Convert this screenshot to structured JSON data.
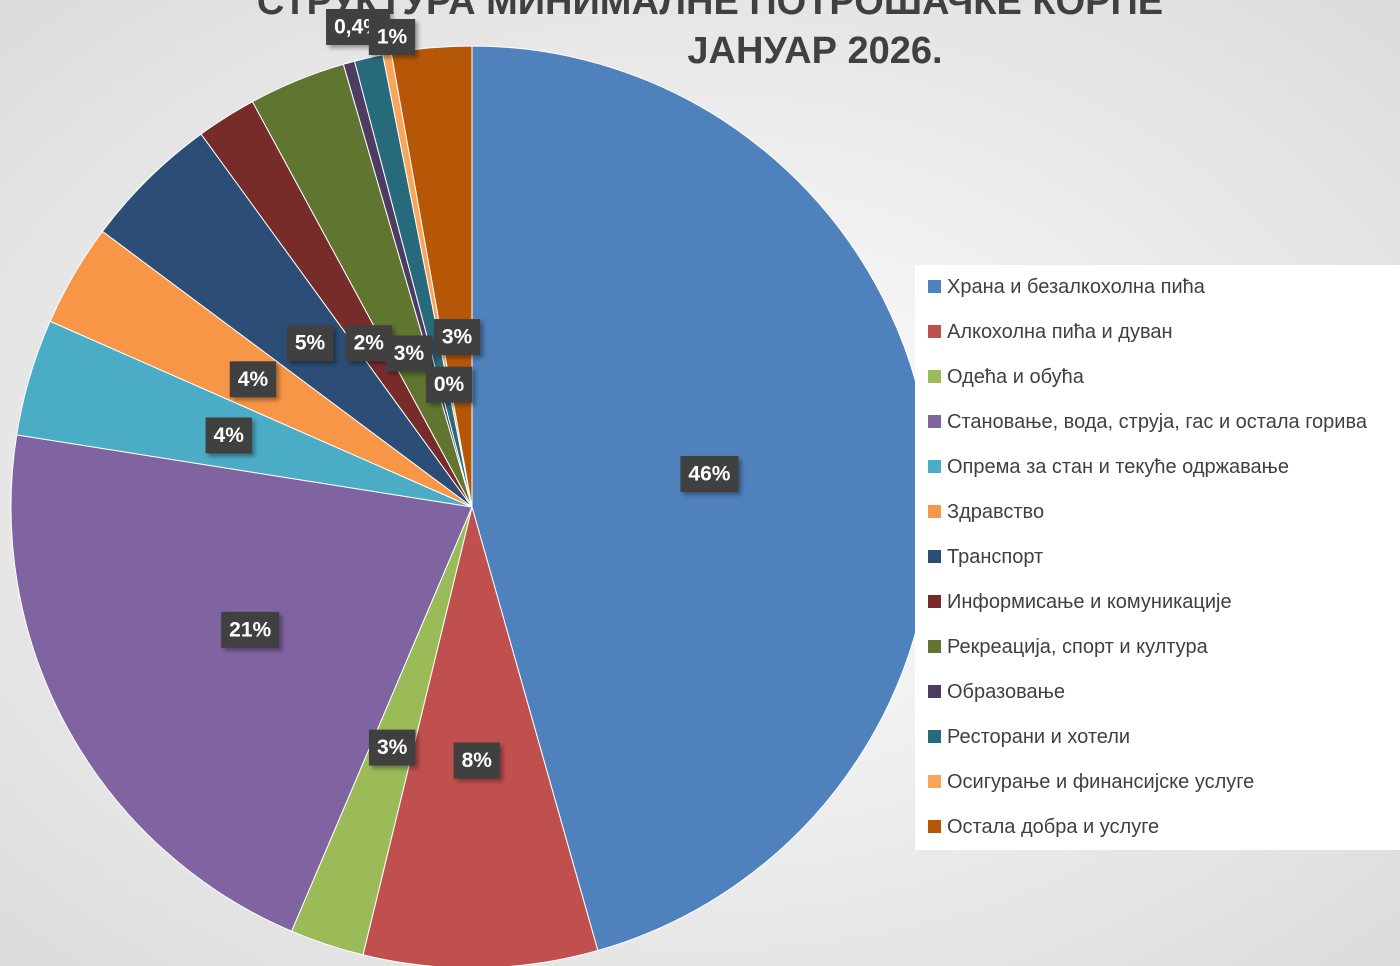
{
  "chart_data": {
    "type": "pie",
    "title": [
      "СТРУКТУРА МИНИМАЛНЕ ПОТРОШАЧКЕ КОРПЕ",
      "ЈАНУАР 2026."
    ],
    "categories": [
      "Храна и безалкохолна пића",
      "Алкохолна пића и дуван",
      "Одећа и обућа",
      "Становање, вода, струја, гас и остала горива",
      "Опрема за стан и текуће одржавање",
      "Здравство",
      "Транспорт",
      "Информисање и комуникације",
      "Рекреација, спорт и култура",
      "Образовање",
      "Ресторани и хотели",
      "Осигурање и финансијске услуге",
      "Остала добра и услуге"
    ],
    "values": [
      45.6,
      8.2,
      2.6,
      21.1,
      4.1,
      3.6,
      4.8,
      2.1,
      3.4,
      0.4,
      1.0,
      0.3,
      2.8
    ],
    "value_labels": [
      "46%",
      "8%",
      "3%",
      "21%",
      "4%",
      "4%",
      "5%",
      "2%",
      "3%",
      "0,4%",
      "1%",
      "0%",
      "3%"
    ],
    "colors": [
      "#4f81bd",
      "#c0504d",
      "#9bbb59",
      "#8064a2",
      "#4bacc6",
      "#f79646",
      "#2c4d75",
      "#772c2a",
      "#5f7530",
      "#4d3b62",
      "#276a7c",
      "#f9a65a",
      "#b65708"
    ],
    "legend": "right"
  }
}
